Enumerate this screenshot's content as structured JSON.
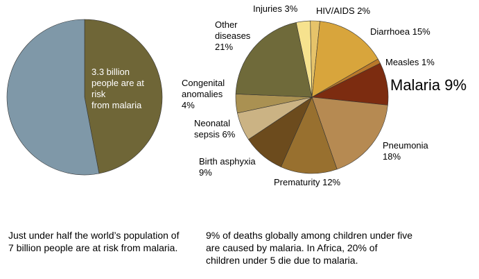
{
  "chart_data": [
    {
      "type": "pie",
      "categories": [
        "3.3 billion\npeople are at\nrisk\nfrom malaria",
        null
      ],
      "values": [
        47,
        53
      ],
      "colors": [
        "#6f6637",
        "#7f98a8"
      ]
    },
    {
      "type": "pie",
      "categories": [
        "Injuries",
        "HIV/AIDS",
        "Diarrhoea",
        "Measles",
        "Malaria",
        "Pneumonia",
        "Prematurity",
        "Birth asphyxia",
        "Neonatal\nsepsis",
        "Congenital\nanomalies",
        "Other\ndiseases"
      ],
      "values": [
        3,
        2,
        15,
        1,
        9,
        18,
        12,
        9,
        6,
        4,
        21
      ],
      "value_labels": [
        "3%",
        "2%",
        "15%",
        "1%",
        "9%",
        "18%",
        "12%",
        "9%",
        "6%",
        "4%",
        "21%"
      ],
      "colors": [
        "#f6e28e",
        "#e6c36a",
        "#d8a53c",
        "#b9782a",
        "#7c2c10",
        "#b68a52",
        "#98702f",
        "#6c4b1d",
        "#cbb384",
        "#aa9152",
        "#6f6a3a"
      ]
    }
  ],
  "captions": [
    "Just under half the world’s population of 7 billion people are at risk from malaria.",
    "9% of deaths globally among children under five are caused by malaria. In Africa, 20% of children under 5 die due to malaria."
  ]
}
